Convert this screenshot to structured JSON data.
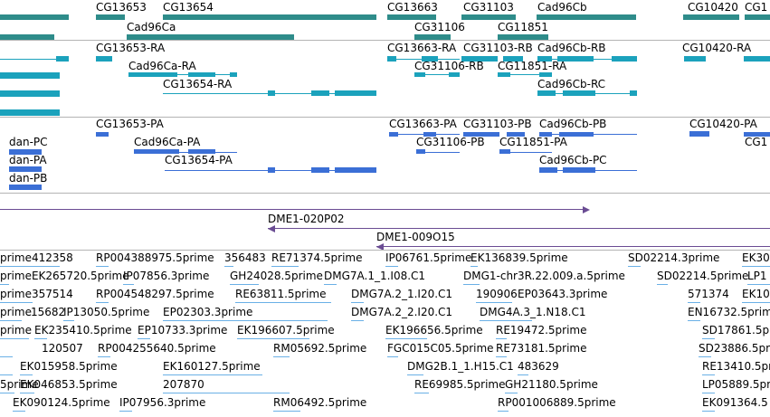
{
  "colors": {
    "gene": "#2e8c8a",
    "rna": "#1ba2bc",
    "protein": "#3b6fd6",
    "clone": "#6a4c93",
    "est": "#6ab0e6",
    "separator": "#b4b4b4"
  },
  "tracks": {
    "genes": {
      "labels": [
        "CG13653",
        "CG13654",
        "Cad96Ca",
        "CG13663",
        "CG31106",
        "CG31103",
        "CG11851",
        "Cad96Cb",
        "CG10420",
        "CG1"
      ]
    },
    "transcripts": {
      "labels": [
        "CG13653-RA",
        "Cad96Ca-RA",
        "CG13654-RA",
        "CG13663-RA",
        "CG31106-RB",
        "CG31103-RB",
        "CG11851-RA",
        "Cad96Cb-RB",
        "Cad96Cb-RC",
        "CG10420-RA"
      ]
    },
    "proteins": {
      "labels": [
        "CG13653-PA",
        "dan-PC",
        "dan-PA",
        "dan-PB",
        "Cad96Ca-PA",
        "CG13654-PA",
        "CG13663-PA",
        "CG31106-PB",
        "CG31103-PB",
        "CG11851-PA",
        "Cad96Cb-PB",
        "Cad96Cb-PC",
        "CG10420-PA",
        "CG1"
      ]
    },
    "clones": {
      "labels": [
        "DME1-020P02",
        "DME1-009O15"
      ]
    },
    "ests": {
      "labels": [
        "prime412358",
        "RP004388975.5prime",
        "356483",
        "RE71374.5prime",
        "IP06761.5prime",
        "EK136839.5prime",
        "SD02214.3prime",
        "EK30",
        "primeEK265720.5prime",
        "IP07856.3prime",
        "GH24028.5prime",
        "DMG7A.1_1.I08.C1",
        "DMG1-chr3R.22.009.a.5prime",
        "SD02214.5prime",
        "LP1",
        "prime357514",
        "RP004548297.5prime",
        "RE63811.5prime",
        "DMG7A.2_1.I20.C1",
        "190906",
        "EP03643.3prime",
        "571374",
        "EK10",
        "prime",
        "15682",
        "IP13050.5prime",
        "EP02303.3prime",
        "DMG7A.2_2.I20.C1",
        "DMG4A.3_1.N18.C1",
        "EN16732.5prime",
        "prime",
        "EK235410.5prime",
        "EP10733.3prime",
        "EK196607.5prime",
        "EK196656.5prime",
        "RE19472.5prime",
        "SD17861.5prime",
        "120507",
        "RP004255640.5prime",
        "RM05692.5prime",
        "FGC015C05.5prime",
        "RE73181.5prime",
        "SD23886.5prime",
        "EK015958.5prime",
        "EK160127.5prime",
        "DMG2B.1_1.H15.C1",
        "483629",
        "RE13410.5prime",
        "5prime",
        "EK046853.5prime",
        "207870",
        "RE69985.5prime",
        "GH21180.5prime",
        "LP05889.5prime",
        "EK090124.5prime",
        "IP07956.3prime",
        "RM06492.5prime",
        "RP001006889.5prime",
        "EK091364.5"
      ]
    }
  }
}
